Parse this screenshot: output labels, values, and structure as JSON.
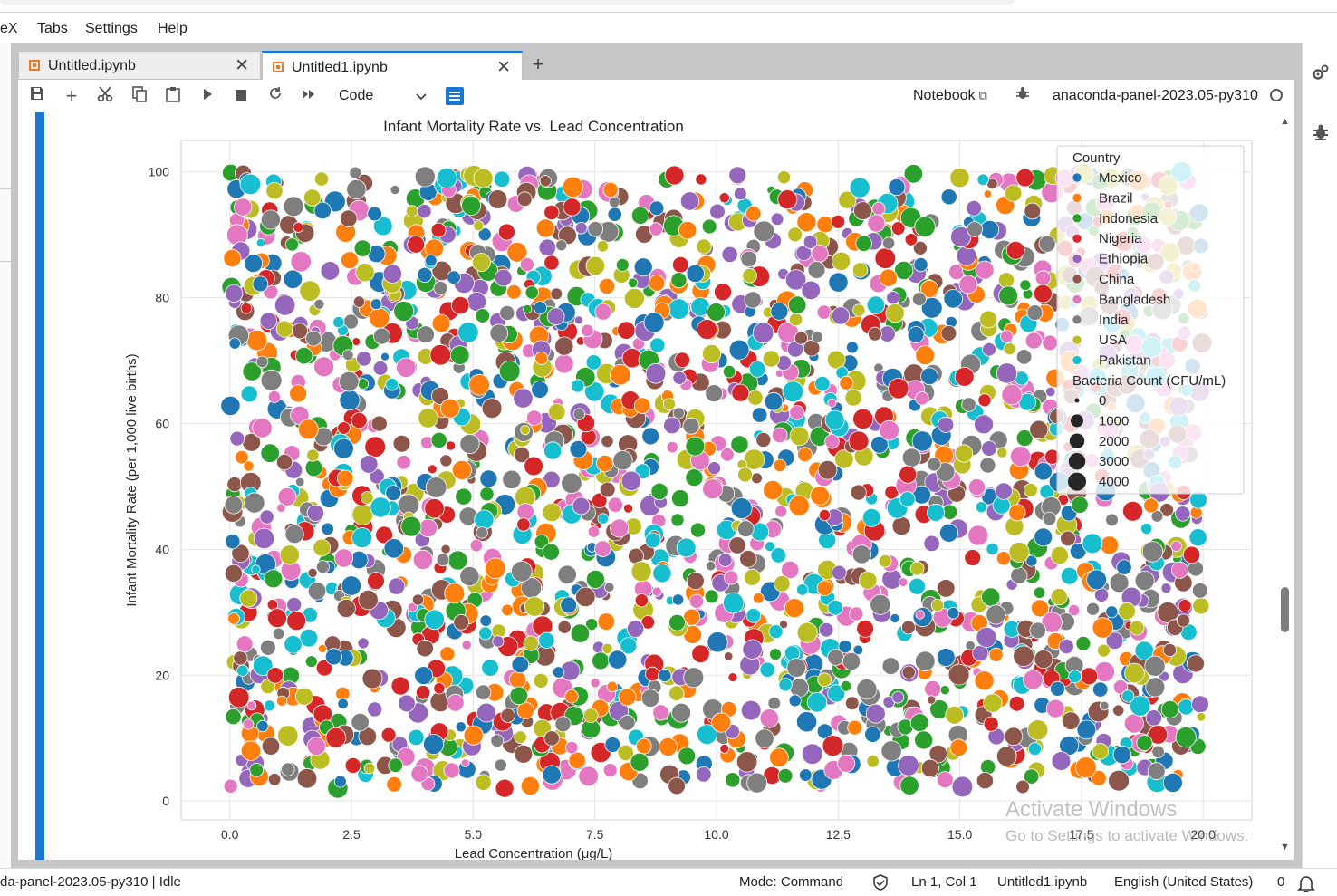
{
  "menubar": {
    "items": [
      "eX",
      "Tabs",
      "Settings",
      "Help"
    ]
  },
  "tabs": [
    {
      "label": "Untitled.ipynb",
      "close": "✕",
      "active": false
    },
    {
      "label": "Untitled1.ipynb",
      "close": "✕",
      "active": true
    }
  ],
  "new_tab_label": "+",
  "toolbar": {
    "icons": [
      "save-icon",
      "add-cell-icon",
      "cut-icon",
      "copy-icon",
      "paste-icon",
      "run-icon",
      "stop-icon",
      "restart-icon",
      "run-all-icon"
    ],
    "cell_type": "Code",
    "notebook_label": "Notebook",
    "kernel_name": "anaconda-panel-2023.05-py310",
    "accent": "#1976d2"
  },
  "right_panel": {
    "icons": [
      "property-inspector-icon",
      "debugger-icon"
    ]
  },
  "chart_data": {
    "type": "scatter",
    "title": "Infant Mortality Rate vs. Lead Concentration",
    "xlabel": "Lead Concentration (μg/L)",
    "ylabel": "Infant Mortality Rate (per 1,000 live births)",
    "xlim": [
      -1.0,
      21.0
    ],
    "ylim": [
      -3.0,
      105.0
    ],
    "x_ticks": [
      "0.0",
      "2.5",
      "5.0",
      "7.5",
      "10.0",
      "12.5",
      "15.0",
      "17.5",
      "20.0"
    ],
    "y_ticks": [
      "0",
      "20",
      "40",
      "60",
      "80",
      "100"
    ],
    "grid": true,
    "legend_position": "top-right",
    "legend_title_hue": "Country",
    "legend_title_size": "Bacteria Count (CFU/mL)",
    "size_levels": [
      {
        "label": "0",
        "value": 0
      },
      {
        "label": "1000",
        "value": 1000
      },
      {
        "label": "2000",
        "value": 2000
      },
      {
        "label": "3000",
        "value": 3000
      },
      {
        "label": "4000",
        "value": 4000
      }
    ],
    "series": [
      {
        "name": "Mexico",
        "color": "#1f77b4"
      },
      {
        "name": "Brazil",
        "color": "#ff7f0e"
      },
      {
        "name": "Indonesia",
        "color": "#2ca02c"
      },
      {
        "name": "Nigeria",
        "color": "#d62728"
      },
      {
        "name": "Ethiopia",
        "color": "#9467bd"
      },
      {
        "name": "China",
        "color": "#8c564b"
      },
      {
        "name": "Bangladesh",
        "color": "#e377c2"
      },
      {
        "name": "India",
        "color": "#7f7f7f"
      },
      {
        "name": "USA",
        "color": "#bcbd22"
      },
      {
        "name": "Pakistan",
        "color": "#17becf"
      }
    ],
    "x_range": [
      0,
      20
    ],
    "y_range": [
      2,
      100
    ],
    "bacteria_range": [
      0,
      5000
    ],
    "point_count": 2400
  },
  "watermark": {
    "line1": "Activate Windows",
    "line2": "Go to Settings to activate Windows."
  },
  "statusbar": {
    "kernel": "da-panel-2023.05-py310 | Idle",
    "mode": "Mode: Command",
    "position": "Ln 1, Col 1",
    "file": "Untitled1.ipynb",
    "language": "English (United States)",
    "notifications": "0"
  }
}
